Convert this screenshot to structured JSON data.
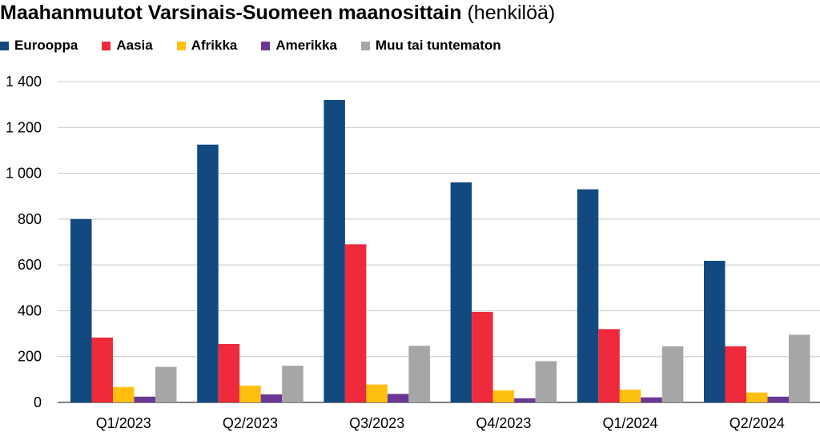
{
  "chart_data": {
    "type": "bar",
    "title": "Maahanmuutot Varsinais-Suomeen maanosittain",
    "subtitle": "(henkilöä)",
    "xlabel": "",
    "ylabel": "",
    "ylim": [
      0,
      1400
    ],
    "yticks": [
      0,
      200,
      400,
      600,
      800,
      1000,
      1200,
      1400
    ],
    "ytick_labels": [
      "0",
      "200",
      "400",
      "600",
      "800",
      "1 000",
      "1 200",
      "1 400"
    ],
    "grid": true,
    "legend_position": "top-left",
    "categories": [
      "Q1/2023",
      "Q2/2023",
      "Q3/2023",
      "Q4/2023",
      "Q1/2024",
      "Q2/2024"
    ],
    "series": [
      {
        "name": "Eurooppa",
        "color": "#124a80",
        "values": [
          800,
          1125,
          1320,
          960,
          930,
          618
        ]
      },
      {
        "name": "Aasia",
        "color": "#ee2a3c",
        "values": [
          283,
          255,
          690,
          395,
          320,
          245
        ]
      },
      {
        "name": "Afrikka",
        "color": "#ffbf0f",
        "values": [
          67,
          73,
          78,
          52,
          55,
          43
        ]
      },
      {
        "name": "Amerikka",
        "color": "#6b3795",
        "values": [
          25,
          35,
          37,
          18,
          22,
          25
        ]
      },
      {
        "name": "Muu tai tuntematon",
        "color": "#a6a6a6",
        "values": [
          155,
          160,
          247,
          180,
          245,
          295
        ]
      }
    ]
  }
}
